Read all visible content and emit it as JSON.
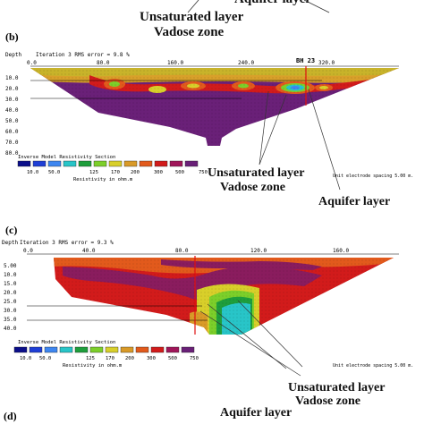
{
  "top_fragment": {
    "aquifer_label": "Aquifer layer",
    "unsaturated_label": "Unsaturated layer",
    "vadose_label": "Vadose zone"
  },
  "panel_b": {
    "letter": "(b)",
    "header_depth": "Depth",
    "header_iteration": "Iteration 3 RMS error = 9.8 %",
    "x_ticks": [
      "0.0",
      "80.0",
      "160.0",
      "240.0",
      "320.0"
    ],
    "depth_ticks": [
      "10.0",
      "20.0",
      "30.0",
      "40.0",
      "50.0",
      "60.0",
      "70.0",
      "80.0"
    ],
    "borehole": "BH 23",
    "legend_title": "Inverse Model Resistivity Section",
    "legend_values": [
      "10.0",
      "50.0",
      "125",
      "170",
      "200",
      "300",
      "500",
      "750"
    ],
    "legend_unit": "Resistivity in ohm.m",
    "electrode_spacing": "Unit electrode spacing 5.00 m.",
    "unsaturated_label": "Unsaturated layer",
    "vadose_label": "Vadose zone",
    "aquifer_label": "Aquifer layer"
  },
  "panel_c": {
    "letter": "(c)",
    "header_depth": "Depth",
    "header_iteration": "Iteration 3 RMS error = 9.3 %",
    "x_ticks": [
      "0.0",
      "40.0",
      "80.0",
      "120.0",
      "160.0"
    ],
    "depth_ticks": [
      "5.00",
      "10.0",
      "15.0",
      "20.0",
      "25.0",
      "30.0",
      "35.0",
      "40.0"
    ],
    "legend_title": "Inverse Model Resistivity Section",
    "legend_values": [
      "10.0",
      "50.0",
      "125",
      "170",
      "200",
      "300",
      "500",
      "750"
    ],
    "legend_unit": "Resistivity in ohm.m",
    "electrode_spacing": "Unit electrode spacing 5.00 m.",
    "unsaturated_label": "Unsaturated layer",
    "vadose_label": "Vadose zone",
    "aquifer_label": "Aquifer layer"
  },
  "panel_d": {
    "letter": "(d)"
  },
  "colors": {
    "scale": [
      "#0b0f8a",
      "#1f3fd6",
      "#3e86f0",
      "#28c5c8",
      "#1e9e3c",
      "#7ccf2a",
      "#d8cf2a",
      "#d99a28",
      "#e25a1c",
      "#d21b1b",
      "#a0165a",
      "#6a2078"
    ]
  }
}
